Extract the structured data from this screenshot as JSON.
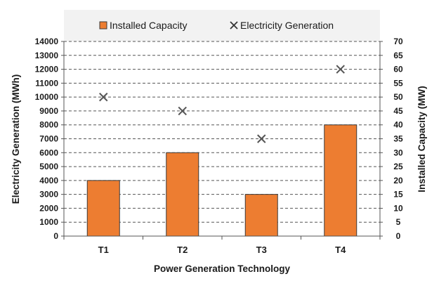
{
  "chart_data": {
    "type": "bar",
    "title": "",
    "xlabel": "Power Generation Technology",
    "ylabel_left": "Electricity Generation (MWh)",
    "ylabel_right": "Installed Capacity (MW)",
    "categories": [
      "T1",
      "T2",
      "T3",
      "T4"
    ],
    "left_axis": {
      "ylim": [
        0,
        14000
      ],
      "ticks": [
        "0",
        "1000",
        "2000",
        "3000",
        "4000",
        "5000",
        "6000",
        "7000",
        "8000",
        "9000",
        "10000",
        "11000",
        "12000",
        "13000",
        "14000"
      ]
    },
    "right_axis": {
      "ylim": [
        0,
        70
      ],
      "ticks": [
        "0",
        "5",
        "10",
        "15",
        "20",
        "25",
        "30",
        "35",
        "40",
        "45",
        "50",
        "55",
        "60",
        "65",
        "70"
      ]
    },
    "series": [
      {
        "name": "Installed Capacity",
        "type": "bar",
        "axis": "right",
        "values": [
          20,
          30,
          15,
          40
        ],
        "color": "#ED7D31",
        "edge_color": "#3a3a3a"
      },
      {
        "name": "Electricity Generation",
        "type": "scatter",
        "marker": "x",
        "axis": "left",
        "values": [
          10000,
          9000,
          7000,
          12000
        ],
        "color": "#555555"
      }
    ],
    "grid": "horizontal-dashed",
    "legend_position": "top",
    "legend_background": "#f2f2f2"
  }
}
